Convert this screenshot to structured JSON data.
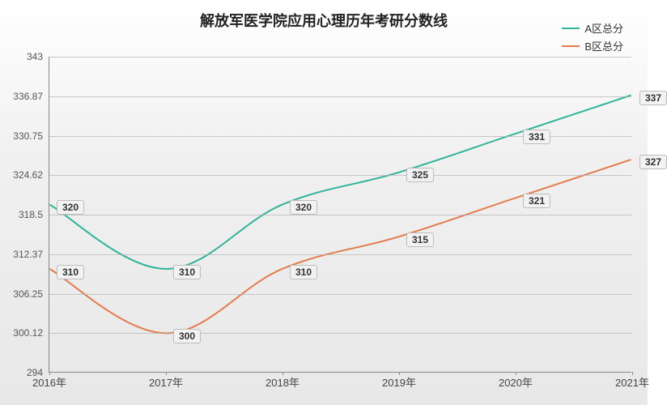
{
  "chart": {
    "type": "line",
    "title": "解放军医学院应用心理历年考研分数线",
    "title_fontsize": 18,
    "background_gradient": [
      "#ffffff",
      "#e8e8e8"
    ],
    "grid_color": "#c8c8c8",
    "axis_color": "#888888",
    "label_fontsize": 12,
    "x": {
      "categories": [
        "2016年",
        "2017年",
        "2018年",
        "2019年",
        "2020年",
        "2021年"
      ]
    },
    "y": {
      "min": 294,
      "max": 343,
      "ticks": [
        294,
        300.12,
        306.25,
        312.37,
        318.5,
        324.62,
        330.75,
        336.87,
        343
      ]
    },
    "series": [
      {
        "name": "A区总分",
        "color": "#30b39a",
        "line_width": 2,
        "curve": "smooth",
        "data": [
          320,
          310,
          320,
          325,
          331,
          337
        ],
        "label_offsets": [
          [
            26,
            3
          ],
          [
            26,
            3
          ],
          [
            26,
            3
          ],
          [
            26,
            3
          ],
          [
            26,
            3
          ],
          [
            26,
            3
          ]
        ]
      },
      {
        "name": "B区总分",
        "color": "#e37b4e",
        "line_width": 2,
        "curve": "smooth",
        "data": [
          310,
          300,
          310,
          315,
          321,
          327
        ],
        "label_offsets": [
          [
            26,
            3
          ],
          [
            26,
            3
          ],
          [
            26,
            3
          ],
          [
            26,
            3
          ],
          [
            26,
            3
          ],
          [
            26,
            3
          ]
        ]
      }
    ],
    "legend": {
      "position": "top-right",
      "fontsize": 13
    }
  }
}
